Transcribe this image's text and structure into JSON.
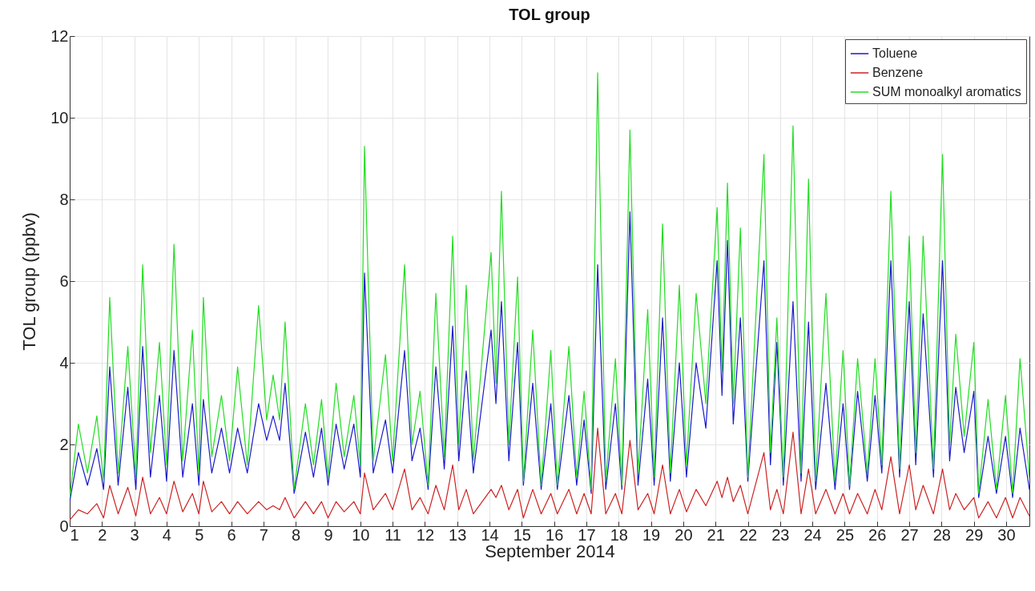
{
  "chart_data": {
    "type": "line",
    "title": "TOL group",
    "xlabel": "September 2014",
    "ylabel": "TOL group (ppbv)",
    "x": [
      1.0,
      1.27,
      1.55,
      1.84,
      2.05,
      2.24,
      2.5,
      2.8,
      3.05,
      3.26,
      3.5,
      3.78,
      4.0,
      4.23,
      4.5,
      4.8,
      5.0,
      5.14,
      5.4,
      5.7,
      5.95,
      6.2,
      6.5,
      6.85,
      7.1,
      7.3,
      7.5,
      7.67,
      7.95,
      8.3,
      8.55,
      8.8,
      9.0,
      9.25,
      9.5,
      9.8,
      10.0,
      10.13,
      10.4,
      10.78,
      11.0,
      11.37,
      11.6,
      11.85,
      12.1,
      12.34,
      12.6,
      12.86,
      13.05,
      13.28,
      13.5,
      14.05,
      14.2,
      14.37,
      14.6,
      14.87,
      15.05,
      15.34,
      15.6,
      15.9,
      16.1,
      16.46,
      16.7,
      16.93,
      17.15,
      17.35,
      17.6,
      17.9,
      18.1,
      18.35,
      18.6,
      18.9,
      19.1,
      19.36,
      19.6,
      19.88,
      20.1,
      20.4,
      20.7,
      21.05,
      21.2,
      21.37,
      21.55,
      21.77,
      22.0,
      22.5,
      22.7,
      22.9,
      23.1,
      23.4,
      23.65,
      23.88,
      24.1,
      24.42,
      24.7,
      24.95,
      25.15,
      25.4,
      25.7,
      25.94,
      26.15,
      26.43,
      26.7,
      27.0,
      27.2,
      27.43,
      27.75,
      28.03,
      28.25,
      28.44,
      28.7,
      29.0,
      29.15,
      29.44,
      29.7,
      29.98,
      30.2,
      30.43,
      30.72
    ],
    "series": [
      {
        "name": "Toluene",
        "color": "#1a1acc",
        "values": [
          0.6,
          1.8,
          1.0,
          1.9,
          0.9,
          3.9,
          1.0,
          3.4,
          0.9,
          4.4,
          1.2,
          3.2,
          1.1,
          4.3,
          1.2,
          3.0,
          1.0,
          3.1,
          1.3,
          2.4,
          1.3,
          2.4,
          1.3,
          3.0,
          2.1,
          2.7,
          2.1,
          3.5,
          0.8,
          2.3,
          1.2,
          2.4,
          1.0,
          2.5,
          1.4,
          2.5,
          1.2,
          6.2,
          1.3,
          2.6,
          1.3,
          4.3,
          1.6,
          2.4,
          0.9,
          3.9,
          1.4,
          4.9,
          1.6,
          3.8,
          1.3,
          4.8,
          3.0,
          5.5,
          1.6,
          4.5,
          1.0,
          3.5,
          0.9,
          3.0,
          0.9,
          3.2,
          1.0,
          2.6,
          0.8,
          6.4,
          0.9,
          3.0,
          0.9,
          7.7,
          1.0,
          3.6,
          1.0,
          5.1,
          1.1,
          4.0,
          1.2,
          4.0,
          2.4,
          6.5,
          3.2,
          7.0,
          2.5,
          5.1,
          1.1,
          6.5,
          1.5,
          4.5,
          1.0,
          5.5,
          1.1,
          5.0,
          0.9,
          3.5,
          0.9,
          3.0,
          0.9,
          3.3,
          1.1,
          3.2,
          1.3,
          6.5,
          1.2,
          5.5,
          1.5,
          5.2,
          1.2,
          6.5,
          1.6,
          3.4,
          1.8,
          3.3,
          0.7,
          2.2,
          0.8,
          2.2,
          0.7,
          2.4,
          0.9
        ]
      },
      {
        "name": "Benzene",
        "color": "#cc2222",
        "values": [
          0.15,
          0.4,
          0.3,
          0.55,
          0.2,
          1.0,
          0.3,
          0.95,
          0.25,
          1.2,
          0.3,
          0.7,
          0.3,
          1.1,
          0.35,
          0.8,
          0.3,
          1.1,
          0.35,
          0.6,
          0.3,
          0.6,
          0.3,
          0.6,
          0.4,
          0.5,
          0.4,
          0.7,
          0.2,
          0.6,
          0.3,
          0.6,
          0.2,
          0.6,
          0.35,
          0.6,
          0.3,
          1.3,
          0.4,
          0.8,
          0.4,
          1.4,
          0.4,
          0.7,
          0.3,
          1.0,
          0.4,
          1.5,
          0.4,
          0.9,
          0.3,
          0.9,
          0.7,
          1.0,
          0.4,
          0.9,
          0.2,
          0.9,
          0.3,
          0.8,
          0.3,
          0.9,
          0.3,
          0.8,
          0.3,
          2.4,
          0.3,
          0.8,
          0.3,
          2.1,
          0.4,
          0.8,
          0.3,
          1.5,
          0.3,
          0.9,
          0.35,
          0.9,
          0.5,
          1.1,
          0.7,
          1.2,
          0.6,
          1.0,
          0.3,
          1.8,
          0.4,
          0.9,
          0.3,
          2.3,
          0.3,
          1.4,
          0.3,
          0.9,
          0.3,
          0.8,
          0.3,
          0.8,
          0.3,
          0.9,
          0.4,
          1.7,
          0.3,
          1.5,
          0.4,
          1.0,
          0.3,
          1.4,
          0.4,
          0.8,
          0.4,
          0.7,
          0.2,
          0.6,
          0.2,
          0.7,
          0.2,
          0.7,
          0.25
        ]
      },
      {
        "name": "SUM monoalkyl aromatics",
        "color": "#22dd22",
        "values": [
          0.7,
          2.5,
          1.3,
          2.7,
          1.1,
          5.6,
          1.3,
          4.4,
          1.2,
          6.4,
          1.8,
          4.5,
          1.5,
          6.9,
          1.6,
          4.8,
          1.3,
          5.6,
          1.7,
          3.2,
          1.6,
          3.9,
          1.5,
          5.4,
          2.6,
          3.7,
          2.6,
          5.0,
          0.9,
          3.0,
          1.5,
          3.1,
          1.2,
          3.5,
          1.7,
          3.2,
          1.5,
          9.3,
          1.6,
          4.2,
          1.6,
          6.4,
          2.0,
          3.3,
          1.0,
          5.7,
          1.7,
          7.1,
          2.0,
          5.9,
          1.6,
          6.7,
          3.5,
          8.2,
          2.0,
          6.1,
          1.1,
          4.8,
          1.0,
          4.3,
          1.0,
          4.4,
          1.2,
          3.3,
          0.9,
          11.1,
          1.1,
          4.1,
          1.0,
          9.7,
          1.3,
          5.3,
          1.2,
          7.4,
          1.3,
          5.9,
          1.5,
          5.7,
          3.0,
          7.8,
          3.8,
          8.4,
          3.0,
          7.3,
          1.2,
          9.1,
          1.8,
          5.1,
          1.2,
          9.8,
          1.3,
          8.5,
          1.1,
          5.7,
          1.1,
          4.3,
          1.0,
          4.1,
          1.3,
          4.1,
          1.5,
          8.2,
          1.4,
          7.1,
          1.8,
          7.1,
          1.4,
          9.1,
          2.0,
          4.7,
          2.2,
          4.5,
          0.8,
          3.1,
          0.9,
          3.2,
          0.8,
          4.1,
          1.2
        ]
      }
    ],
    "xlim": [
      1,
      30.72
    ],
    "xticks": [
      1,
      2,
      3,
      4,
      5,
      6,
      7,
      8,
      9,
      10,
      11,
      12,
      13,
      14,
      15,
      16,
      17,
      18,
      19,
      20,
      21,
      22,
      23,
      24,
      25,
      26,
      27,
      28,
      29,
      30
    ],
    "ylim": [
      0,
      12
    ],
    "yticks": [
      0,
      2,
      4,
      6,
      8,
      10,
      12
    ],
    "grid": true,
    "legend": "top right"
  }
}
